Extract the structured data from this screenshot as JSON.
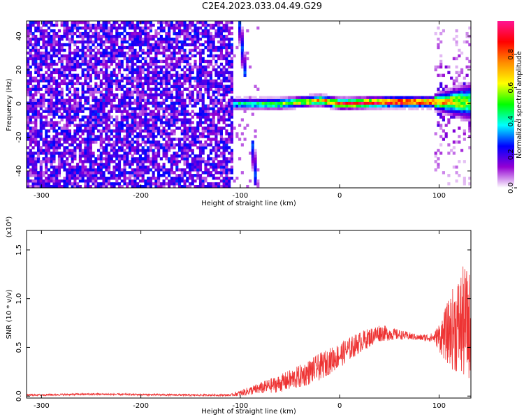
{
  "title": "C2E4.2023.033.04.49.G29",
  "chart_data": [
    {
      "type": "heatmap",
      "title": "",
      "xlabel": "Height of straight line (km)",
      "ylabel": "Frequency (Hz)",
      "xlim": [
        -315,
        132
      ],
      "ylim": [
        -50,
        49
      ],
      "x_ticks": [
        -300,
        -200,
        -100,
        0,
        100
      ],
      "x_tick_labels": [
        "-300",
        "-200",
        "-100",
        "0",
        "100"
      ],
      "y_ticks": [
        -40,
        -20,
        0,
        20,
        40
      ],
      "y_tick_labels": [
        "-40",
        "-20",
        "0",
        "20",
        "40"
      ],
      "colorbar": {
        "label": "Normalized spectral amplitude",
        "range": [
          0,
          1
        ],
        "ticks": [
          0.0,
          0.2,
          0.4,
          0.6,
          0.8
        ],
        "tick_labels": [
          "0.0",
          "0.2",
          "0.4",
          "0.6",
          "0.8"
        ],
        "colors": [
          "#ffffff",
          "#9400d3",
          "#0000ff",
          "#00ffff",
          "#00ff00",
          "#ffff00",
          "#ff8c00",
          "#ff0000",
          "#ff1493"
        ]
      },
      "features": {
        "noise_region_x": [
          -315,
          -108
        ],
        "noise_amplitude": 0.3,
        "carrier_track": [
          {
            "x": -108,
            "y": 0,
            "amp": 0.45
          },
          {
            "x": -60,
            "y": 0,
            "amp": 0.6
          },
          {
            "x": -20,
            "y": 2,
            "amp": 0.75
          },
          {
            "x": 0,
            "y": 0,
            "amp": 0.9
          },
          {
            "x": 50,
            "y": 1,
            "amp": 1.0
          },
          {
            "x": 90,
            "y": 1,
            "amp": 0.9
          },
          {
            "x": 132,
            "y": 1,
            "amp": 0.55
          }
        ],
        "streaks": [
          {
            "x0": -258,
            "y0": -32,
            "x1": -228,
            "y1": 18
          },
          {
            "x0": -101,
            "y0": 49,
            "x1": -95,
            "y1": 16
          },
          {
            "x0": -88,
            "y0": -22,
            "x1": -84,
            "y1": -48
          }
        ]
      }
    },
    {
      "type": "line",
      "title": "",
      "xlabel": "Height of straight line (km)",
      "ylabel": "SNR (10 * v/v)",
      "y_multiplier": "(x10⁴)",
      "xlim": [
        -315,
        132
      ],
      "ylim": [
        -0.02,
        1.7
      ],
      "x_ticks": [
        -300,
        -200,
        -100,
        0,
        100
      ],
      "x_tick_labels": [
        "-300",
        "-200",
        "-100",
        "0",
        "100"
      ],
      "y_ticks": [
        0.0,
        0.5,
        1.0,
        1.5
      ],
      "y_tick_labels": [
        "0.0",
        "0.5",
        "1.0",
        "1.5"
      ],
      "series": [
        {
          "color": "#ee3333",
          "x": [
            -315,
            -250,
            -150,
            -110,
            -100,
            -80,
            -60,
            -40,
            -20,
            0,
            20,
            40,
            60,
            80,
            95,
            105,
            115,
            125,
            132
          ],
          "mean": [
            0.01,
            0.02,
            0.01,
            0.01,
            0.03,
            0.08,
            0.13,
            0.2,
            0.3,
            0.42,
            0.55,
            0.65,
            0.63,
            0.6,
            0.6,
            0.62,
            0.7,
            0.75,
            0.72
          ],
          "spread": [
            0.01,
            0.01,
            0.01,
            0.01,
            0.03,
            0.06,
            0.09,
            0.12,
            0.14,
            0.13,
            0.11,
            0.09,
            0.05,
            0.03,
            0.05,
            0.25,
            0.45,
            0.6,
            0.55
          ]
        }
      ]
    }
  ]
}
